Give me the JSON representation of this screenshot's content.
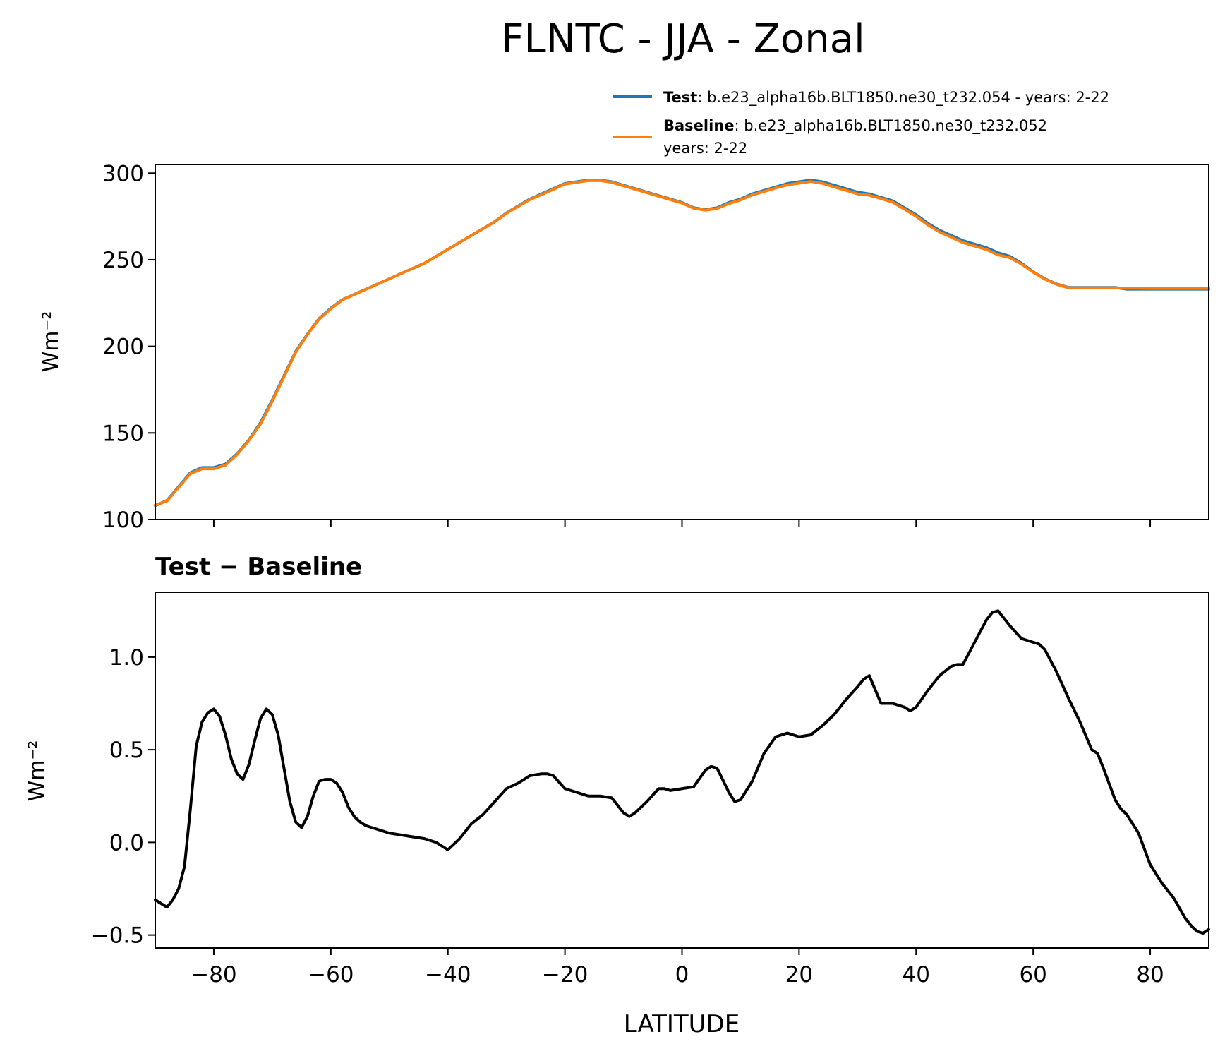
{
  "title": "FLNTC - JJA - Zonal",
  "legend": {
    "test_bold": "Test",
    "test_text": ": b.e23_alpha16b.BLT1850.ne30_t232.054 - years: 2-22",
    "baseline_bold": "Baseline",
    "baseline_text": ": b.e23_alpha16b.BLT1850.ne30_t232.052",
    "baseline_text2": "years: 2-22"
  },
  "diff_title": "Test − Baseline",
  "colors": {
    "test": "#1f77b4",
    "baseline": "#ff7f0e",
    "diff": "#000000"
  },
  "chart_data": [
    {
      "type": "line",
      "ylabel": "Wm⁻²",
      "xlim": [
        -90,
        90
      ],
      "ylim": [
        100,
        305
      ],
      "xticks": [
        -80,
        -60,
        -40,
        -20,
        0,
        20,
        40,
        60,
        80
      ],
      "yticks": [
        100,
        150,
        200,
        250,
        300
      ],
      "grid": false,
      "legend_position": "above-right",
      "x": [
        -90,
        -88,
        -86,
        -84,
        -82,
        -80,
        -78,
        -76,
        -74,
        -72,
        -70,
        -68,
        -66,
        -64,
        -62,
        -60,
        -58,
        -56,
        -54,
        -52,
        -50,
        -48,
        -46,
        -44,
        -42,
        -40,
        -38,
        -36,
        -34,
        -32,
        -30,
        -28,
        -26,
        -24,
        -22,
        -20,
        -18,
        -16,
        -14,
        -12,
        -10,
        -8,
        -6,
        -4,
        -2,
        0,
        2,
        4,
        6,
        8,
        10,
        12,
        14,
        16,
        18,
        20,
        22,
        24,
        26,
        28,
        30,
        32,
        34,
        36,
        38,
        40,
        42,
        44,
        46,
        48,
        50,
        52,
        54,
        56,
        58,
        60,
        62,
        64,
        66,
        68,
        70,
        72,
        74,
        76,
        78,
        80,
        82,
        84,
        86,
        88,
        90
      ],
      "series": [
        {
          "name": "Test",
          "values": [
            108,
            111,
            119,
            127,
            130,
            130,
            132,
            138,
            146,
            156,
            169,
            183,
            197,
            207,
            216,
            222,
            227,
            230,
            233,
            236,
            239,
            242,
            245,
            248,
            252,
            256,
            260,
            264,
            268,
            272,
            277,
            281,
            285,
            288,
            291,
            294,
            295,
            296,
            296,
            295,
            293,
            291,
            289,
            287,
            285,
            283,
            280,
            279,
            280,
            283,
            285,
            288,
            290,
            292,
            294,
            295,
            296,
            295,
            293,
            291,
            289,
            288,
            286,
            284,
            280,
            276,
            271,
            267,
            264,
            261,
            259,
            257,
            254,
            252,
            248,
            243,
            239,
            236,
            234,
            234,
            234,
            234,
            234,
            233,
            233,
            233,
            233,
            233,
            233,
            233,
            233
          ]
        },
        {
          "name": "Baseline",
          "values": [
            108.3,
            110.7,
            118.6,
            126.5,
            129.3,
            129.3,
            131.4,
            137.6,
            145.7,
            155.3,
            168.3,
            182.4,
            196.6,
            206.7,
            215.7,
            221.7,
            226.9,
            229.9,
            232.9,
            236.0,
            239.0,
            242.0,
            245.0,
            248.0,
            251.9,
            256.0,
            260.0,
            264.0,
            267.9,
            271.9,
            276.8,
            280.8,
            284.7,
            287.6,
            290.6,
            293.7,
            294.7,
            295.7,
            295.7,
            294.7,
            292.7,
            290.7,
            288.7,
            286.7,
            284.7,
            282.7,
            279.7,
            278.6,
            279.6,
            282.4,
            284.5,
            287.4,
            289.4,
            291.4,
            293.2,
            294.2,
            295.2,
            294.1,
            292.0,
            290.1,
            288.0,
            287.2,
            285.3,
            283.2,
            279.2,
            275.1,
            270.1,
            266.0,
            263.0,
            259.9,
            257.9,
            255.9,
            252.8,
            251.2,
            247.5,
            242.8,
            238.8,
            235.8,
            233.8,
            233.8,
            233.8,
            233.8,
            233.8,
            233.6,
            233.6,
            233.5,
            233.5,
            233.5,
            233.5,
            233.5,
            233.5
          ]
        }
      ]
    },
    {
      "type": "line",
      "title": "Test − Baseline",
      "xlabel": "LATITUDE",
      "ylabel": "Wm⁻²",
      "xlim": [
        -90,
        90
      ],
      "ylim": [
        -0.57,
        1.35
      ],
      "xticks": [
        -80,
        -60,
        -40,
        -20,
        0,
        20,
        40,
        60,
        80
      ],
      "xtick_labels": [
        "−80",
        "−60",
        "−40",
        "−20",
        "0",
        "20",
        "40",
        "60",
        "80"
      ],
      "yticks": [
        -0.5,
        0.0,
        0.5,
        1.0
      ],
      "ytick_labels": [
        "−0.5",
        "0.0",
        "0.5",
        "1.0"
      ],
      "grid": false,
      "x": [
        -90,
        -89,
        -88,
        -87,
        -86,
        -85,
        -84,
        -83,
        -82,
        -81,
        -80,
        -79,
        -78,
        -77,
        -76,
        -75,
        -74,
        -73,
        -72,
        -71,
        -70,
        -69,
        -68,
        -67,
        -66,
        -65,
        -64,
        -63,
        -62,
        -61,
        -60,
        -59,
        -58,
        -57,
        -56,
        -55,
        -54,
        -53,
        -52,
        -51,
        -50,
        -48,
        -46,
        -44,
        -42,
        -41,
        -40,
        -38,
        -36,
        -34,
        -32,
        -30,
        -28,
        -26,
        -24,
        -23,
        -22,
        -20,
        -18,
        -16,
        -14,
        -12,
        -10,
        -9,
        -8,
        -6,
        -4,
        -3,
        -2,
        0,
        2,
        4,
        5,
        6,
        8,
        9,
        10,
        12,
        14,
        16,
        18,
        19,
        20,
        22,
        24,
        26,
        28,
        30,
        31,
        32,
        34,
        36,
        38,
        39,
        40,
        42,
        44,
        46,
        47,
        48,
        50,
        52,
        53,
        54,
        56,
        58,
        60,
        61,
        62,
        64,
        66,
        68,
        70,
        71,
        72,
        74,
        75,
        76,
        78,
        80,
        82,
        84,
        86,
        87,
        88,
        89,
        90
      ],
      "series": [
        {
          "values": [
            -0.31,
            -0.33,
            -0.35,
            -0.31,
            -0.25,
            -0.13,
            0.18,
            0.52,
            0.65,
            0.7,
            0.72,
            0.68,
            0.58,
            0.45,
            0.37,
            0.34,
            0.42,
            0.55,
            0.67,
            0.72,
            0.69,
            0.58,
            0.4,
            0.22,
            0.11,
            0.08,
            0.14,
            0.25,
            0.33,
            0.34,
            0.34,
            0.32,
            0.27,
            0.19,
            0.14,
            0.11,
            0.09,
            0.08,
            0.07,
            0.06,
            0.05,
            0.04,
            0.03,
            0.02,
            0.0,
            -0.02,
            -0.04,
            0.02,
            0.1,
            0.15,
            0.22,
            0.29,
            0.32,
            0.36,
            0.37,
            0.37,
            0.36,
            0.29,
            0.27,
            0.25,
            0.25,
            0.24,
            0.16,
            0.14,
            0.16,
            0.22,
            0.29,
            0.29,
            0.28,
            0.29,
            0.3,
            0.39,
            0.41,
            0.4,
            0.27,
            0.22,
            0.23,
            0.33,
            0.48,
            0.57,
            0.59,
            0.58,
            0.57,
            0.58,
            0.63,
            0.69,
            0.77,
            0.84,
            0.88,
            0.9,
            0.75,
            0.75,
            0.73,
            0.71,
            0.73,
            0.82,
            0.9,
            0.95,
            0.96,
            0.96,
            1.08,
            1.2,
            1.24,
            1.25,
            1.17,
            1.1,
            1.08,
            1.07,
            1.04,
            0.92,
            0.78,
            0.65,
            0.5,
            0.48,
            0.4,
            0.23,
            0.18,
            0.15,
            0.05,
            -0.12,
            -0.22,
            -0.3,
            -0.41,
            -0.45,
            -0.48,
            -0.49,
            -0.47
          ]
        }
      ]
    }
  ]
}
